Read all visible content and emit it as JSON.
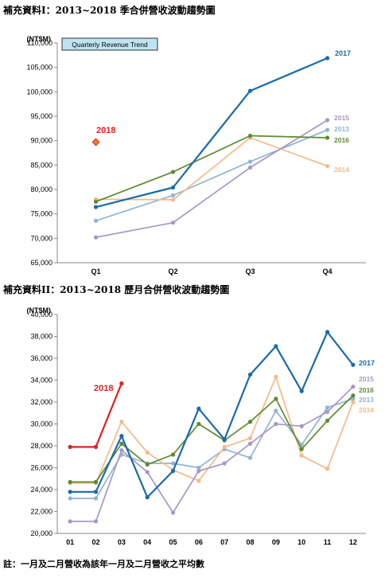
{
  "headings": {
    "chart1": "補充資料I：2013~2018 季合併營收波動趨勢圖",
    "chart2": "補充資料II：2013~2018 歷月合併營收波動趨勢圖"
  },
  "footnote": "註：一月及二月營收為該年一月及二月營收之平均數",
  "colors": {
    "2013": "#8fb3d4",
    "2014": "#f5b98a",
    "2015": "#a896c4",
    "2016": "#5e8a2e",
    "2017": "#1b6aa8",
    "2018": "#e02020"
  },
  "chart_data": [
    {
      "type": "line",
      "title": "Quarterly Revenue Trend",
      "ylabel": "(NT$M)",
      "categories": [
        "Q1",
        "Q2",
        "Q3",
        "Q4"
      ],
      "ylim": [
        65000,
        110000
      ],
      "yticks": [
        "65,000",
        "70,000",
        "75,000",
        "80,000",
        "85,000",
        "90,000",
        "95,000",
        "100,000",
        "105,000",
        "110,000"
      ],
      "grid": false,
      "series": [
        {
          "name": "2013",
          "values": [
            73600,
            78800,
            85700,
            92200
          ]
        },
        {
          "name": "2014",
          "values": [
            78000,
            77900,
            90600,
            84800
          ]
        },
        {
          "name": "2015",
          "values": [
            70200,
            73200,
            84500,
            94200
          ]
        },
        {
          "name": "2016",
          "values": [
            77500,
            83600,
            91000,
            90600
          ]
        },
        {
          "name": "2017",
          "values": [
            76400,
            80400,
            100200,
            106900
          ]
        },
        {
          "name": "2018",
          "values": [
            89700,
            null,
            null,
            null
          ]
        }
      ]
    },
    {
      "type": "line",
      "ylabel": "(NT$M)",
      "categories": [
        "01",
        "02",
        "03",
        "04",
        "05",
        "06",
        "07",
        "08",
        "09",
        "10",
        "11",
        "12"
      ],
      "ylim": [
        20000,
        40000
      ],
      "yticks": [
        "20,000",
        "22,000",
        "24,000",
        "26,000",
        "28,000",
        "30,000",
        "32,000",
        "34,000",
        "36,000",
        "38,000",
        "40,000"
      ],
      "grid": false,
      "series": [
        {
          "name": "2013",
          "values": [
            23200,
            23200,
            27200,
            26400,
            26400,
            26000,
            27700,
            26900,
            31200,
            28100,
            31500,
            32300
          ]
        },
        {
          "name": "2014",
          "values": [
            24600,
            24600,
            30200,
            27400,
            25800,
            24800,
            27900,
            28700,
            34300,
            27100,
            25900,
            32000
          ]
        },
        {
          "name": "2015",
          "values": [
            21100,
            21100,
            27600,
            25600,
            21900,
            25700,
            26400,
            28200,
            30000,
            29800,
            31100,
            33400
          ]
        },
        {
          "name": "2016",
          "values": [
            24700,
            24700,
            28200,
            26300,
            27200,
            30000,
            28500,
            30200,
            32300,
            27700,
            30300,
            32600
          ]
        },
        {
          "name": "2017",
          "values": [
            23800,
            23800,
            28900,
            23300,
            25700,
            31400,
            28600,
            34500,
            37100,
            33000,
            38400,
            35400
          ]
        },
        {
          "name": "2018",
          "values": [
            27900,
            27900,
            33700,
            null,
            null,
            null,
            null,
            null,
            null,
            null,
            null,
            null
          ]
        }
      ]
    }
  ]
}
